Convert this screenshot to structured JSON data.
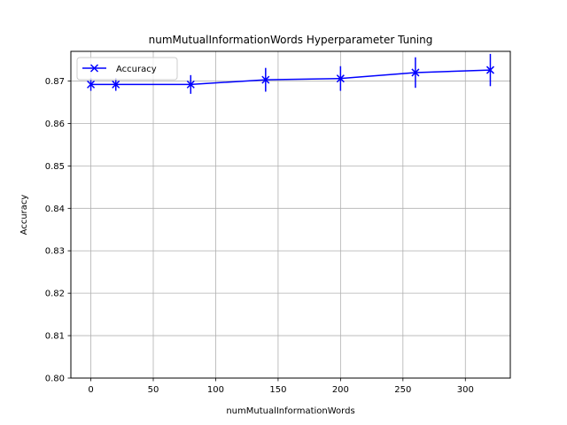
{
  "chart_data": {
    "type": "line",
    "title": "numMutualInformationWords Hyperparameter Tuning",
    "xlabel": "numMutualInformationWords",
    "ylabel": "Accuracy",
    "xlim": [
      -16,
      336
    ],
    "ylim": [
      0.8,
      0.877
    ],
    "xticks": [
      0,
      50,
      100,
      150,
      200,
      250,
      300
    ],
    "xtick_labels": [
      "0",
      "50",
      "100",
      "150",
      "200",
      "250",
      "300"
    ],
    "yticks": [
      0.8,
      0.81,
      0.82,
      0.83,
      0.84,
      0.85,
      0.86,
      0.87
    ],
    "ytick_labels": [
      "0.80",
      "0.81",
      "0.82",
      "0.83",
      "0.84",
      "0.85",
      "0.86",
      "0.87"
    ],
    "grid": true,
    "legend_position": "top-left",
    "series": [
      {
        "name": "Accuracy",
        "color": "#0000ff",
        "marker": "x",
        "x": [
          0,
          20,
          80,
          140,
          200,
          260,
          320
        ],
        "y": [
          0.8692,
          0.8692,
          0.8692,
          0.8703,
          0.8706,
          0.872,
          0.8726
        ],
        "error": [
          0.0015,
          0.0015,
          0.0022,
          0.0028,
          0.0029,
          0.0036,
          0.0038
        ]
      }
    ]
  }
}
